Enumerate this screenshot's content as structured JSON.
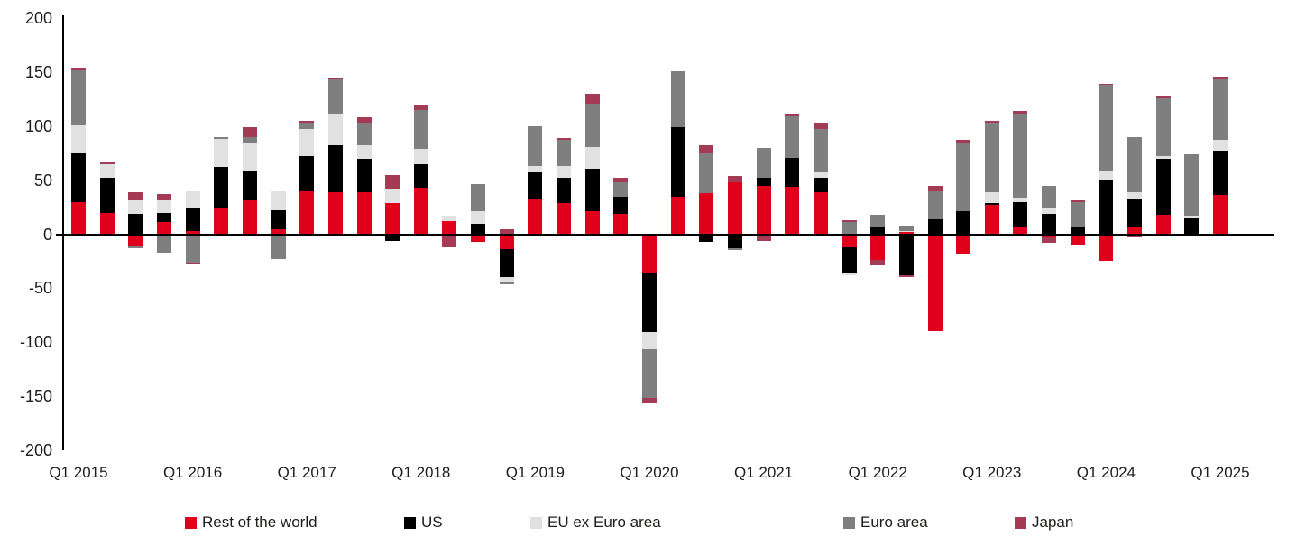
{
  "chart_data": {
    "type": "bar",
    "stacked": true,
    "title": "",
    "xlabel": "",
    "ylabel": "",
    "ylim": [
      -200,
      200
    ],
    "y_ticks": [
      200,
      150,
      100,
      50,
      0,
      -50,
      -100,
      -150,
      -200
    ],
    "grid": false,
    "legend_position": "bottom",
    "x_tick_labels": [
      "Q1 2015",
      "Q1 2016",
      "Q1 2017",
      "Q1 2018",
      "Q1 2019",
      "Q1 2020",
      "Q1 2021",
      "Q1 2022",
      "Q1 2023",
      "Q1 2024",
      "Q1 2025"
    ],
    "categories": [
      "Q1 2015",
      "Q2 2015",
      "Q3 2015",
      "Q4 2015",
      "Q1 2016",
      "Q2 2016",
      "Q3 2016",
      "Q4 2016",
      "Q1 2017",
      "Q2 2017",
      "Q3 2017",
      "Q4 2017",
      "Q1 2018",
      "Q2 2018",
      "Q3 2018",
      "Q4 2018",
      "Q1 2019",
      "Q2 2019",
      "Q3 2019",
      "Q4 2019",
      "Q1 2020",
      "Q2 2020",
      "Q3 2020",
      "Q4 2020",
      "Q1 2021",
      "Q2 2021",
      "Q3 2021",
      "Q4 2021",
      "Q1 2022",
      "Q2 2022",
      "Q3 2022",
      "Q4 2022",
      "Q1 2023",
      "Q2 2023",
      "Q3 2023",
      "Q4 2023",
      "Q1 2024",
      "Q2 2024",
      "Q3 2024",
      "Q4 2024",
      "Q1 2025"
    ],
    "series": [
      {
        "name": "Rest of the world",
        "color": "#E0001B",
        "values": [
          30,
          20,
          -11,
          11,
          3,
          25,
          31,
          5,
          40,
          39,
          39,
          29,
          43,
          12,
          -7,
          -14,
          32,
          29,
          21,
          19,
          -36,
          35,
          38,
          48,
          45,
          44,
          39,
          -12,
          -24,
          2,
          -90,
          -19,
          27,
          6,
          -3,
          -10,
          -25,
          7,
          18,
          0,
          36
        ]
      },
      {
        "name": "US",
        "color": "#000000",
        "values": [
          45,
          32,
          19,
          9,
          21,
          37,
          27,
          17,
          32,
          43,
          31,
          -6,
          22,
          0,
          10,
          -26,
          25,
          23,
          40,
          16,
          -55,
          64,
          -7,
          -13,
          7,
          27,
          13,
          -24,
          7,
          -38,
          14,
          21,
          2,
          24,
          19,
          7,
          50,
          26,
          52,
          15,
          41
        ]
      },
      {
        "name": "EU ex Euro area",
        "color": "#E1E1E1",
        "values": [
          26,
          13,
          12,
          11,
          16,
          26,
          27,
          18,
          25,
          30,
          12,
          13,
          14,
          5,
          11,
          -4,
          6,
          11,
          20,
          0,
          -16,
          0,
          0,
          0,
          0,
          0,
          5,
          -2,
          0,
          1,
          0,
          0,
          10,
          4,
          5,
          0,
          9,
          6,
          2,
          2,
          10
        ]
      },
      {
        "name": "Euro area",
        "color": "#7F7F7F",
        "values": [
          51,
          0,
          -2,
          -17,
          -26,
          2,
          5,
          -23,
          6,
          31,
          21,
          0,
          36,
          0,
          25,
          -2,
          37,
          24,
          40,
          13,
          -45,
          52,
          37,
          -2,
          28,
          39,
          40,
          11,
          11,
          5,
          26,
          63,
          64,
          78,
          21,
          23,
          79,
          51,
          54,
          57,
          56
        ]
      },
      {
        "name": "Japan",
        "color": "#A53A55",
        "values": [
          2,
          2,
          8,
          6,
          -2,
          0,
          9,
          0,
          2,
          2,
          5,
          13,
          5,
          -12,
          0,
          5,
          0,
          2,
          9,
          4,
          -5,
          0,
          7,
          6,
          -6,
          2,
          6,
          2,
          -5,
          -2,
          5,
          3,
          2,
          2,
          -5,
          1,
          1,
          -3,
          2,
          0,
          3
        ]
      }
    ]
  }
}
